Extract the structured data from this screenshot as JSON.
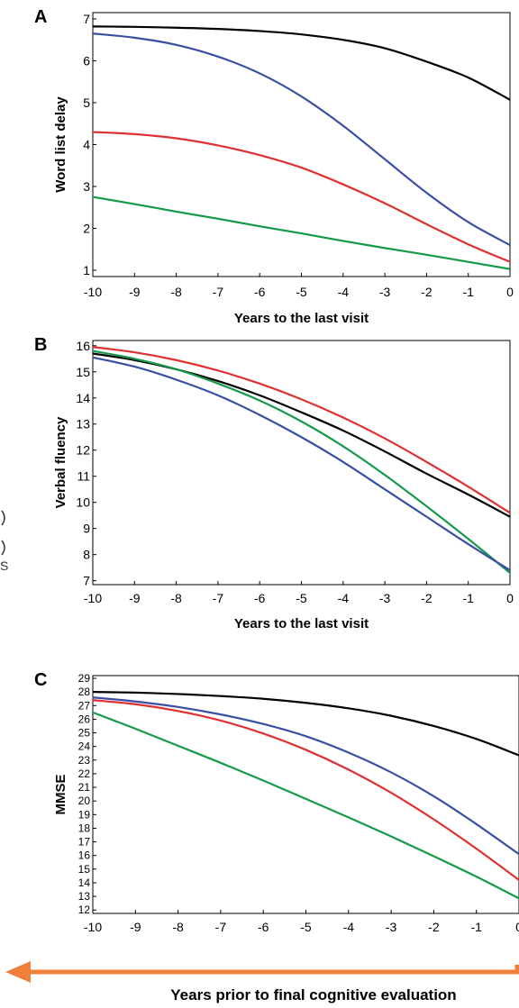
{
  "chart_data": [
    {
      "panel": "A",
      "type": "line",
      "ylabel": "Word list delay",
      "xlabel": "Years to the last visit",
      "xlim": [
        -10,
        0
      ],
      "ylim": [
        0.85,
        7.15
      ],
      "xticks": [
        "-10",
        "-9",
        "-8",
        "-7",
        "-6",
        "-5",
        "-4",
        "-3",
        "-2",
        "-1",
        "0"
      ],
      "yticks": [
        "1",
        "2",
        "3",
        "4",
        "5",
        "6",
        "7"
      ],
      "series": [
        {
          "color": "#000000",
          "x": [
            -10,
            -9,
            -8,
            -7,
            -6,
            -5,
            -4,
            -3,
            -2,
            -1,
            0
          ],
          "y": [
            6.82,
            6.81,
            6.79,
            6.76,
            6.71,
            6.63,
            6.5,
            6.3,
            5.98,
            5.6,
            5.07
          ]
        },
        {
          "color": "#3a4fa3",
          "x": [
            -10,
            -9,
            -8,
            -7,
            -6,
            -5,
            -4,
            -3,
            -2,
            -1,
            0
          ],
          "y": [
            6.65,
            6.55,
            6.38,
            6.1,
            5.7,
            5.15,
            4.45,
            3.65,
            2.85,
            2.15,
            1.6
          ]
        },
        {
          "color": "#e03030",
          "x": [
            -10,
            -9,
            -8,
            -7,
            -6,
            -5,
            -4,
            -3,
            -2,
            -1,
            0
          ],
          "y": [
            4.3,
            4.25,
            4.15,
            3.98,
            3.75,
            3.45,
            3.05,
            2.6,
            2.1,
            1.62,
            1.2
          ]
        },
        {
          "color": "#149a4a",
          "x": [
            -10,
            -9,
            -8,
            -7,
            -6,
            -5,
            -4,
            -3,
            -2,
            -1,
            0
          ],
          "y": [
            2.75,
            2.58,
            2.4,
            2.23,
            2.05,
            1.88,
            1.7,
            1.53,
            1.37,
            1.2,
            1.03
          ]
        }
      ]
    },
    {
      "panel": "B",
      "type": "line",
      "ylabel": "Verbal fluency",
      "xlabel": "Years to the last visit",
      "xlim": [
        -10,
        0
      ],
      "ylim": [
        6.85,
        16.2
      ],
      "xticks": [
        "-10",
        "-9",
        "-8",
        "-7",
        "-6",
        "-5",
        "-4",
        "-3",
        "-2",
        "-1",
        "0"
      ],
      "yticks": [
        "7",
        "8",
        "9",
        "10",
        "11",
        "12",
        "13",
        "14",
        "15",
        "16"
      ],
      "series": [
        {
          "color": "#e03030",
          "x": [
            -10,
            -9,
            -8,
            -7,
            -6,
            -5,
            -4,
            -3,
            -2,
            -1,
            0
          ],
          "y": [
            15.95,
            15.75,
            15.45,
            15.05,
            14.55,
            13.95,
            13.25,
            12.45,
            11.55,
            10.6,
            9.6
          ]
        },
        {
          "color": "#000000",
          "x": [
            -10,
            -9,
            -8,
            -7,
            -6,
            -5,
            -4,
            -3,
            -2,
            -1,
            0
          ],
          "y": [
            15.7,
            15.45,
            15.1,
            14.65,
            14.1,
            13.45,
            12.75,
            11.95,
            11.1,
            10.3,
            9.45
          ]
        },
        {
          "color": "#149a4a",
          "x": [
            -10,
            -9,
            -8,
            -7,
            -6,
            -5,
            -4,
            -3,
            -2,
            -1,
            0
          ],
          "y": [
            15.8,
            15.5,
            15.1,
            14.55,
            13.9,
            13.1,
            12.15,
            11.05,
            9.85,
            8.6,
            7.3
          ]
        },
        {
          "color": "#3a4fa3",
          "x": [
            -10,
            -9,
            -8,
            -7,
            -6,
            -5,
            -4,
            -3,
            -2,
            -1,
            0
          ],
          "y": [
            15.55,
            15.2,
            14.7,
            14.1,
            13.35,
            12.5,
            11.55,
            10.5,
            9.45,
            8.4,
            7.4
          ]
        }
      ]
    },
    {
      "panel": "C",
      "type": "line",
      "ylabel": "MMSE",
      "xlabel": "",
      "xlim": [
        -10,
        0
      ],
      "ylim": [
        11.75,
        29.2
      ],
      "xticks": [
        "-10",
        "-9",
        "-8",
        "-7",
        "-6",
        "-5",
        "-4",
        "-3",
        "-2",
        "-1",
        "0"
      ],
      "yticks": [
        "12",
        "13",
        "14",
        "15",
        "16",
        "17",
        "18",
        "19",
        "20",
        "21",
        "22",
        "23",
        "24",
        "25",
        "26",
        "27",
        "28",
        "29"
      ],
      "series": [
        {
          "color": "#000000",
          "x": [
            -10,
            -9,
            -8,
            -7,
            -6,
            -5,
            -4,
            -3,
            -2,
            -1,
            0
          ],
          "y": [
            28.0,
            27.95,
            27.85,
            27.7,
            27.5,
            27.2,
            26.8,
            26.25,
            25.5,
            24.55,
            23.35
          ]
        },
        {
          "color": "#3a4fa3",
          "x": [
            -10,
            -9,
            -8,
            -7,
            -6,
            -5,
            -4,
            -3,
            -2,
            -1,
            0
          ],
          "y": [
            27.6,
            27.3,
            26.9,
            26.35,
            25.65,
            24.75,
            23.55,
            22.1,
            20.35,
            18.3,
            16.1
          ]
        },
        {
          "color": "#e03030",
          "x": [
            -10,
            -9,
            -8,
            -7,
            -6,
            -5,
            -4,
            -3,
            -2,
            -1,
            0
          ],
          "y": [
            27.4,
            27.1,
            26.6,
            25.9,
            24.95,
            23.75,
            22.3,
            20.6,
            18.65,
            16.5,
            14.2
          ]
        },
        {
          "color": "#149a4a",
          "x": [
            -10,
            -9,
            -8,
            -7,
            -6,
            -5,
            -4,
            -3,
            -2,
            -1,
            0
          ],
          "y": [
            26.5,
            25.3,
            24.05,
            22.8,
            21.5,
            20.15,
            18.8,
            17.4,
            15.95,
            14.45,
            12.85
          ]
        }
      ]
    }
  ],
  "bottom_caption": "Years prior to final cognitive evaluation",
  "arrow_color": "#f07f3c",
  "stray_glyphs": [
    "S"
  ]
}
